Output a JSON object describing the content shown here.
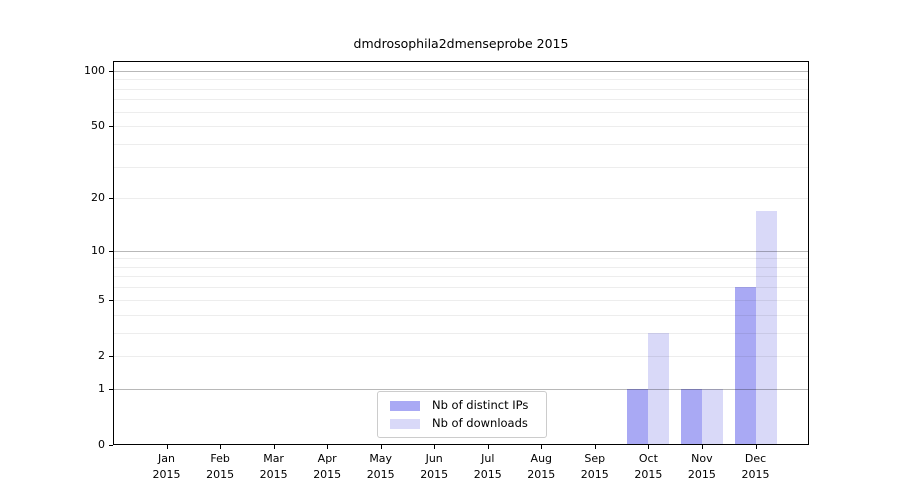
{
  "chart_data": {
    "type": "bar",
    "title": "dmdrosophila2dmenseprobe 2015",
    "categories": [
      "Jan 2015",
      "Feb 2015",
      "Mar 2015",
      "Apr 2015",
      "May 2015",
      "Jun 2015",
      "Jul 2015",
      "Aug 2015",
      "Sep 2015",
      "Oct 2015",
      "Nov 2015",
      "Dec 2015"
    ],
    "series": [
      {
        "name": "Nb of distinct IPs",
        "color": "#a9a9f4",
        "values": [
          0,
          0,
          0,
          0,
          0,
          0,
          0,
          0,
          0,
          1,
          1,
          6
        ]
      },
      {
        "name": "Nb of downloads",
        "color": "#d9d9f8",
        "values": [
          0,
          0,
          0,
          0,
          0,
          0,
          0,
          0,
          0,
          3,
          1,
          17
        ]
      }
    ],
    "y_axis": {
      "scale": "log10(1+x)",
      "tick_labels": [
        "0",
        "1",
        "2",
        "5",
        "10",
        "20",
        "50",
        "100"
      ],
      "tick_values": [
        0,
        1,
        2,
        5,
        10,
        20,
        50,
        100
      ],
      "major_gridlines": [
        1,
        10,
        100
      ],
      "minor_gridlines": [
        2,
        3,
        4,
        5,
        6,
        7,
        8,
        9,
        20,
        30,
        40,
        50,
        60,
        70,
        80,
        90
      ]
    },
    "ylim": [
      0,
      113
    ],
    "xlabel": "",
    "ylabel": "",
    "grid": "horizontal",
    "legend_position": "lower-center-inside"
  }
}
